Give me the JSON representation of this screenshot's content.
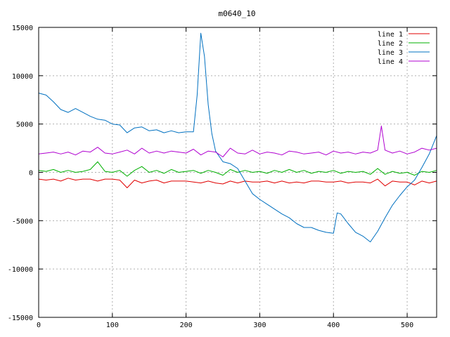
{
  "chart_data": {
    "type": "line",
    "title": "m0640_10",
    "xlabel": "",
    "ylabel": "",
    "xlim": [
      0,
      540
    ],
    "ylim": [
      -15000,
      15000
    ],
    "xticks": [
      0,
      100,
      200,
      300,
      400,
      500
    ],
    "yticks": [
      -15000,
      -10000,
      -5000,
      0,
      5000,
      10000,
      15000
    ],
    "grid": true,
    "legend_position": "top-right",
    "series": [
      {
        "name": "line 1",
        "color": "#e00000",
        "x": [
          0,
          10,
          20,
          30,
          40,
          50,
          60,
          70,
          80,
          90,
          100,
          110,
          120,
          130,
          140,
          150,
          160,
          170,
          180,
          190,
          200,
          210,
          220,
          230,
          240,
          250,
          260,
          270,
          280,
          290,
          300,
          310,
          320,
          330,
          340,
          350,
          360,
          370,
          380,
          390,
          400,
          410,
          420,
          430,
          440,
          450,
          460,
          470,
          480,
          490,
          500,
          510,
          520,
          530,
          540
        ],
        "y": [
          -700,
          -800,
          -700,
          -900,
          -600,
          -800,
          -700,
          -700,
          -900,
          -700,
          -700,
          -800,
          -1600,
          -800,
          -1100,
          -900,
          -800,
          -1100,
          -900,
          -900,
          -900,
          -1000,
          -1100,
          -900,
          -1100,
          -1200,
          -900,
          -1100,
          -900,
          -1000,
          -1000,
          -900,
          -1100,
          -900,
          -1100,
          -1000,
          -1100,
          -900,
          -900,
          -1000,
          -1000,
          -900,
          -1100,
          -1000,
          -1000,
          -1100,
          -700,
          -1400,
          -900,
          -1000,
          -1000,
          -1300,
          -900,
          -1100,
          -900
        ]
      },
      {
        "name": "line 2",
        "color": "#00b000",
        "x": [
          0,
          10,
          20,
          30,
          40,
          50,
          60,
          70,
          80,
          90,
          100,
          110,
          120,
          130,
          140,
          150,
          160,
          170,
          180,
          190,
          200,
          210,
          220,
          230,
          240,
          250,
          260,
          270,
          280,
          290,
          300,
          310,
          320,
          330,
          340,
          350,
          360,
          370,
          380,
          390,
          400,
          410,
          420,
          430,
          440,
          450,
          460,
          470,
          480,
          490,
          500,
          510,
          520,
          530,
          540
        ],
        "y": [
          200,
          100,
          300,
          0,
          200,
          0,
          100,
          300,
          1100,
          100,
          0,
          200,
          -400,
          200,
          600,
          0,
          200,
          -100,
          300,
          0,
          100,
          200,
          -100,
          200,
          0,
          -300,
          300,
          0,
          200,
          0,
          100,
          -100,
          200,
          0,
          300,
          0,
          200,
          -100,
          100,
          0,
          200,
          -100,
          100,
          0,
          100,
          -200,
          400,
          -200,
          100,
          -100,
          0,
          -300,
          100,
          0,
          200
        ]
      },
      {
        "name": "line 3",
        "color": "#0070c0",
        "x": [
          0,
          10,
          20,
          30,
          40,
          50,
          60,
          70,
          80,
          90,
          100,
          110,
          120,
          130,
          140,
          150,
          160,
          170,
          180,
          190,
          200,
          210,
          215,
          220,
          225,
          230,
          235,
          240,
          250,
          260,
          270,
          280,
          290,
          300,
          310,
          320,
          330,
          340,
          350,
          360,
          370,
          380,
          390,
          400,
          405,
          410,
          420,
          430,
          440,
          450,
          460,
          470,
          480,
          490,
          500,
          510,
          520,
          530,
          540
        ],
        "y": [
          8200,
          8000,
          7300,
          6500,
          6200,
          6600,
          6200,
          5800,
          5500,
          5400,
          5000,
          4900,
          4100,
          4600,
          4700,
          4300,
          4400,
          4100,
          4300,
          4100,
          4200,
          4200,
          8000,
          14400,
          12000,
          7000,
          4000,
          2200,
          1100,
          900,
          400,
          -900,
          -2200,
          -2800,
          -3300,
          -3800,
          -4300,
          -4700,
          -5300,
          -5700,
          -5700,
          -6000,
          -6200,
          -6300,
          -4200,
          -4300,
          -5300,
          -6200,
          -6600,
          -7200,
          -6100,
          -4700,
          -3400,
          -2400,
          -1500,
          -800,
          500,
          1900,
          3800
        ]
      },
      {
        "name": "line 4",
        "color": "#b000d0",
        "x": [
          0,
          10,
          20,
          30,
          40,
          50,
          60,
          70,
          80,
          90,
          100,
          110,
          120,
          130,
          140,
          150,
          160,
          170,
          180,
          190,
          200,
          210,
          220,
          230,
          240,
          250,
          260,
          270,
          280,
          290,
          300,
          310,
          320,
          330,
          340,
          350,
          360,
          370,
          380,
          390,
          400,
          410,
          420,
          430,
          440,
          450,
          460,
          465,
          470,
          480,
          490,
          500,
          510,
          520,
          530,
          540
        ],
        "y": [
          1900,
          2000,
          2100,
          1900,
          2100,
          1800,
          2200,
          2100,
          2600,
          2000,
          1900,
          2100,
          2300,
          1900,
          2500,
          2000,
          2200,
          2000,
          2200,
          2100,
          2000,
          2400,
          1800,
          2200,
          2100,
          1600,
          2500,
          2000,
          1900,
          2300,
          1900,
          2100,
          2000,
          1800,
          2200,
          2100,
          1900,
          2000,
          2100,
          1800,
          2200,
          2000,
          2100,
          1900,
          2100,
          2000,
          2300,
          4800,
          2300,
          2000,
          2200,
          1900,
          2100,
          2500,
          2300,
          2500
        ]
      }
    ]
  }
}
